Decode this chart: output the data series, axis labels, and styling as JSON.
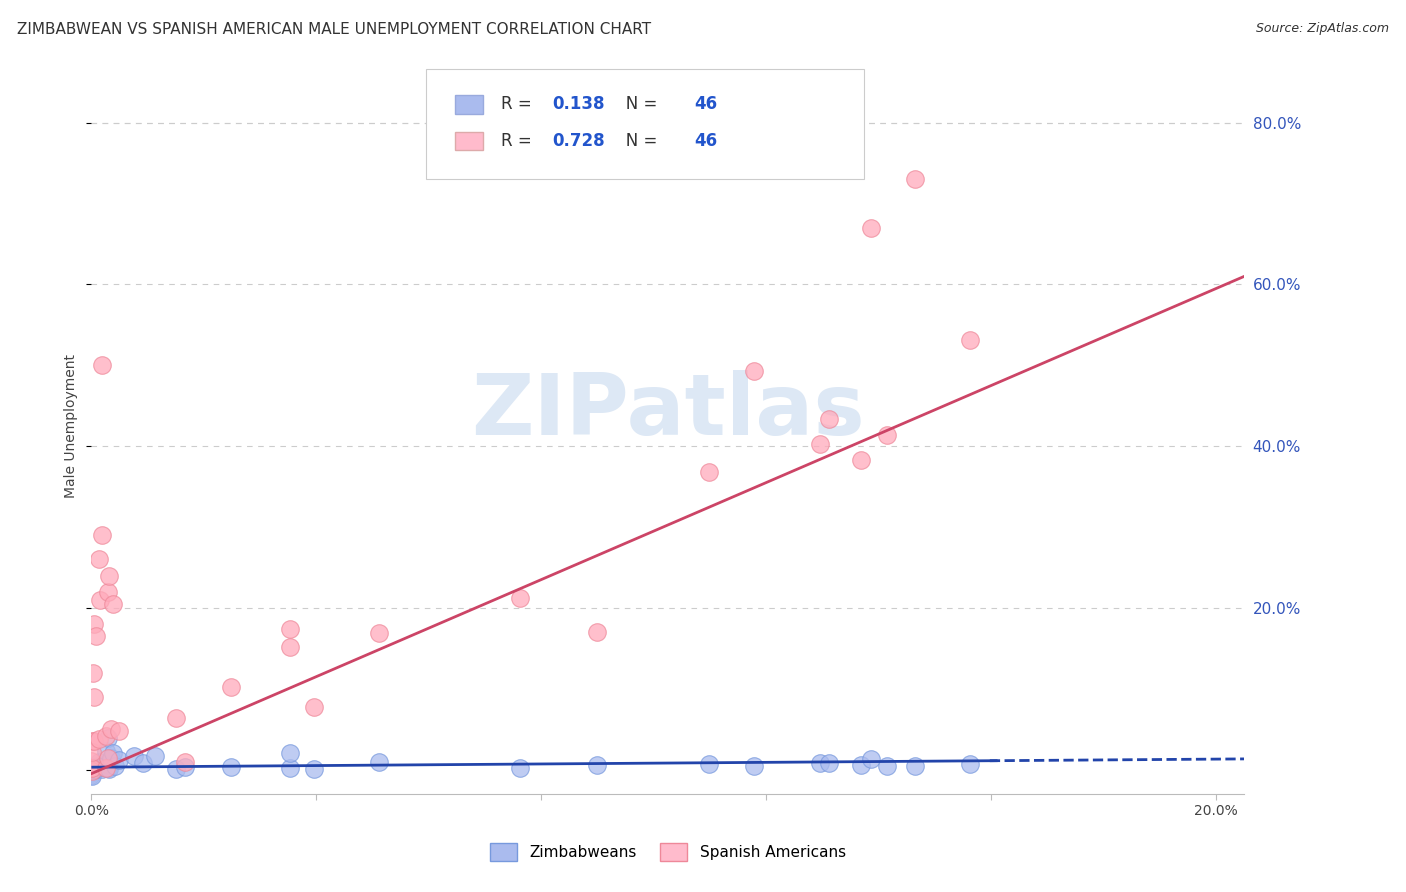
{
  "title": "ZIMBABWEAN VS SPANISH AMERICAN MALE UNEMPLOYMENT CORRELATION CHART",
  "source": "Source: ZipAtlas.com",
  "ylabel": "Male Unemployment",
  "xlim": [
    0.0,
    0.205
  ],
  "ylim": [
    -0.03,
    0.88
  ],
  "xticks": [
    0.0,
    0.04,
    0.08,
    0.12,
    0.16,
    0.2
  ],
  "xtick_labels": [
    "0.0%",
    "",
    "",
    "",
    "",
    "20.0%"
  ],
  "ytick_right": [
    0.0,
    0.2,
    0.4,
    0.6,
    0.8
  ],
  "ytick_right_labels": [
    "",
    "20.0%",
    "40.0%",
    "60.0%",
    "80.0%"
  ],
  "grid_color": "#cccccc",
  "background_color": "#ffffff",
  "R1": "0.138",
  "N1": "46",
  "R2": "0.728",
  "N2": "46",
  "blue_color": "#aabbee",
  "pink_color": "#ffaabb",
  "blue_edge_color": "#7799dd",
  "pink_edge_color": "#ee8899",
  "line_blue_color": "#2244aa",
  "line_pink_color": "#cc4466",
  "legend_blue_fill": "#aabbee",
  "legend_pink_fill": "#ffbbcc",
  "watermark_color": "#dde8f5",
  "title_fontsize": 11,
  "source_fontsize": 9,
  "axis_label_fontsize": 10,
  "tick_fontsize": 10,
  "legend_fontsize": 12
}
